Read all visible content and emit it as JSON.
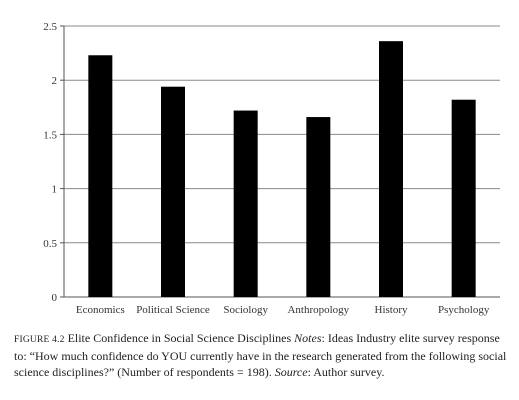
{
  "chart_data": {
    "type": "bar",
    "categories": [
      "Economics",
      "Political Science",
      "Sociology",
      "Anthropology",
      "History",
      "Psychology"
    ],
    "values": [
      2.23,
      1.94,
      1.72,
      1.66,
      2.36,
      1.82
    ],
    "y_ticks": [
      "0",
      "0.5",
      "1",
      "1.5",
      "2",
      "2.5"
    ],
    "ylim": [
      0,
      2.5
    ],
    "xlabel": "",
    "ylabel": "",
    "grid": true,
    "bar_color": "#000000",
    "grid_color": "#8a8a8a"
  },
  "caption": {
    "figure_label": "FIGURE 4.2",
    "title": "Elite Confidence in Social Science Disciplines",
    "notes_label": "Notes",
    "notes_text": ": Ideas Industry elite survey response to: “How much confidence do YOU currently have in the research generated from the following social science disciplines?” (Number of respondents = 198).",
    "source_label": "Source",
    "source_text": ": Author survey."
  }
}
